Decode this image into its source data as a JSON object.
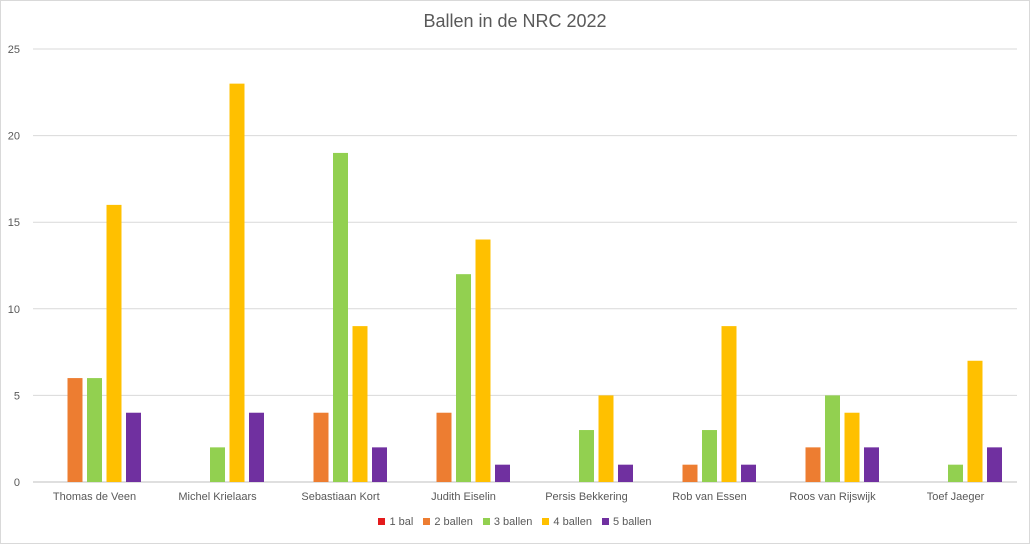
{
  "chart_data": {
    "type": "bar",
    "title": "Ballen in de NRC 2022",
    "categories": [
      "Thomas de Veen",
      "Michel Krielaars",
      "Sebastiaan Kort",
      "Judith Eiselin",
      "Persis Bekkering",
      "Rob van Essen",
      "Roos van Rijswijk",
      "Toef Jaeger"
    ],
    "series": [
      {
        "name": "1 bal",
        "color": "#e41a1c",
        "values": [
          0,
          0,
          0,
          0,
          0,
          0,
          0,
          0
        ]
      },
      {
        "name": "2 ballen",
        "color": "#ed7d31",
        "values": [
          6,
          0,
          4,
          4,
          0,
          1,
          2,
          0
        ]
      },
      {
        "name": "3 ballen",
        "color": "#92d050",
        "values": [
          6,
          2,
          19,
          12,
          3,
          3,
          5,
          1
        ]
      },
      {
        "name": "4 ballen",
        "color": "#ffc000",
        "values": [
          16,
          23,
          9,
          14,
          5,
          9,
          4,
          7
        ]
      },
      {
        "name": "5 ballen",
        "color": "#7030a0",
        "values": [
          4,
          4,
          2,
          1,
          1,
          1,
          2,
          2
        ]
      }
    ],
    "yticks": [
      0,
      5,
      10,
      15,
      20,
      25
    ],
    "ylim": [
      0,
      25
    ],
    "grid": true,
    "legend_position": "bottom"
  }
}
